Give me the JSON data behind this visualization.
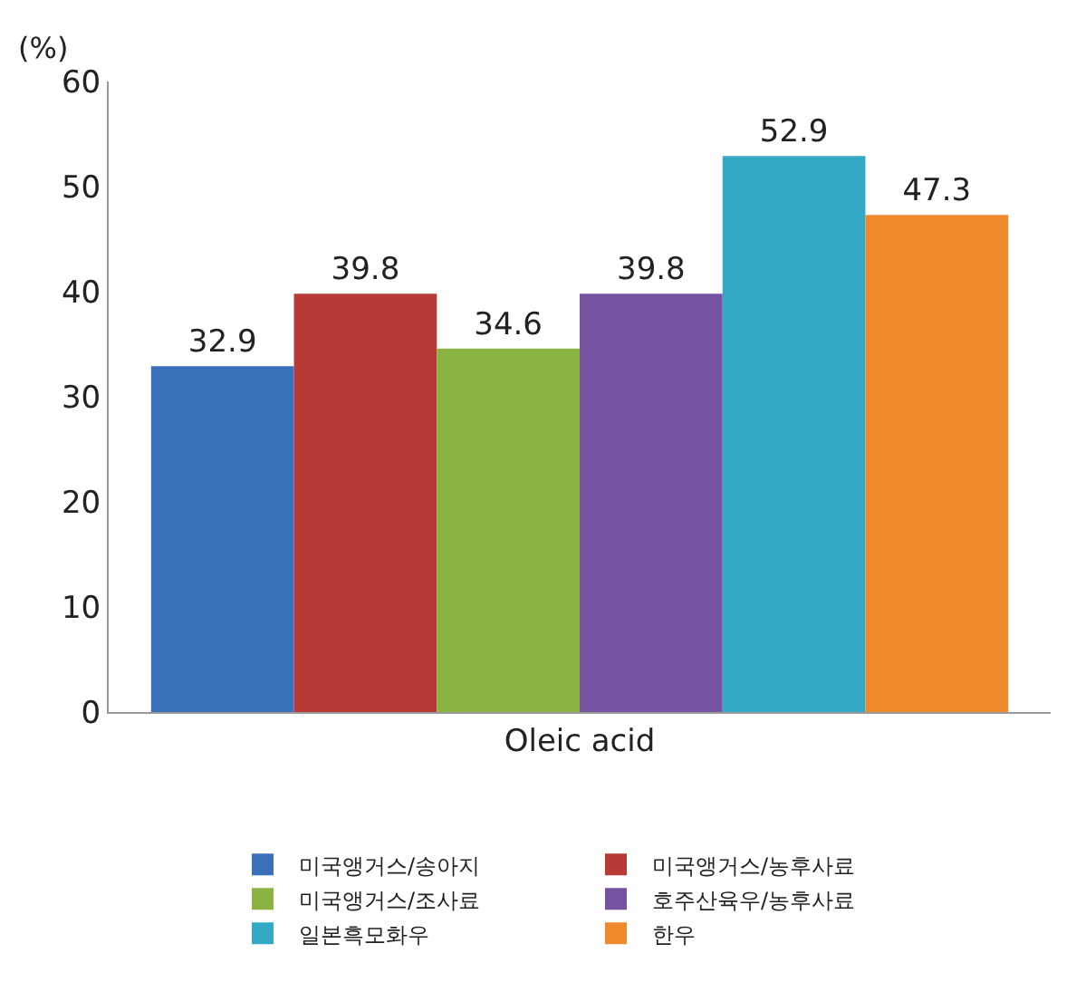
{
  "chart_data": {
    "type": "bar",
    "ylabel": "(%)",
    "categories": [
      "Oleic acid"
    ],
    "series": [
      {
        "name": "미국앵거스/송아지",
        "color": "#3a6fba",
        "values": [
          32.9
        ]
      },
      {
        "name": "미국앵거스/농후사료",
        "color": "#b83a36",
        "values": [
          39.8
        ]
      },
      {
        "name": "미국앵거스/조사료",
        "color": "#8ab342",
        "values": [
          34.6
        ]
      },
      {
        "name": "호주산육우/농후사료",
        "color": "#7553a0",
        "values": [
          39.8
        ]
      },
      {
        "name": "일본흑모화우",
        "color": "#33a9c6",
        "values": [
          52.9
        ]
      },
      {
        "name": "한우",
        "color": "#ef8a2c",
        "values": [
          47.3
        ]
      }
    ],
    "ylim": [
      0,
      60
    ],
    "yticks": [
      0,
      10,
      20,
      30,
      40,
      50,
      60
    ],
    "data_labels": true,
    "legend": "bottom"
  }
}
